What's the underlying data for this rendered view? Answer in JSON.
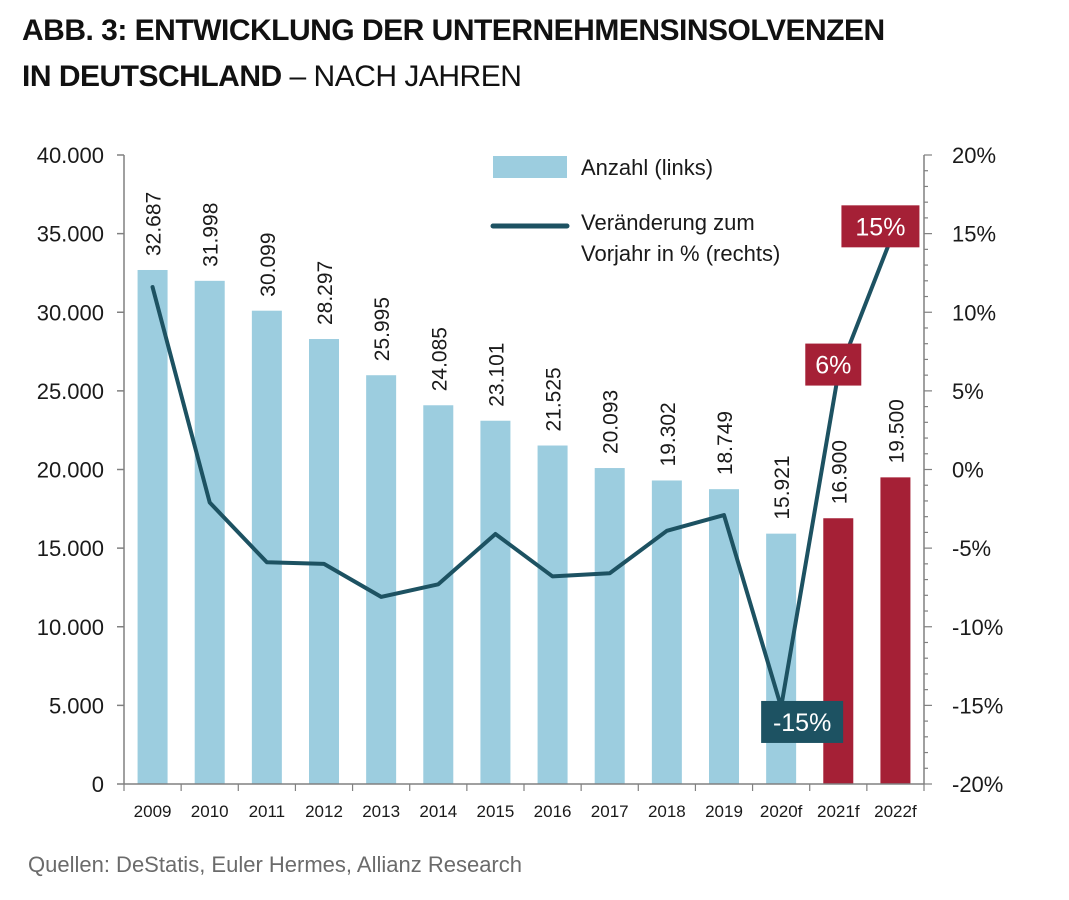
{
  "title": {
    "line1": "ABB. 3: ENTWICKLUNG DER UNTERNEHMENSINSOLVENZEN",
    "line2_bold": "IN DEUTSCHLAND",
    "line2_rest": " – NACH JAHREN"
  },
  "source": "Quellen: DeStatis, Euler Hermes, Allianz Research",
  "colors": {
    "bar": "#9ccddf",
    "bar_forecast": "#a52036",
    "line": "#1d5262",
    "callout_forecast": "#a52036",
    "callout_line": "#1d5262",
    "axis": "#808080"
  },
  "chart_data": {
    "type": "bar",
    "categories": [
      "2009",
      "2010",
      "2011",
      "2012",
      "2013",
      "2014",
      "2015",
      "2016",
      "2017",
      "2018",
      "2019",
      "2020f",
      "2021f",
      "2022f"
    ],
    "series": [
      {
        "name": "Anzahl (links)",
        "type": "bar",
        "axis": "left",
        "values": [
          32687,
          31998,
          30099,
          28297,
          25995,
          24085,
          23101,
          21525,
          20093,
          19302,
          18749,
          15921,
          16900,
          19500
        ],
        "labels": [
          "32.687",
          "31.998",
          "30.099",
          "28.297",
          "25.995",
          "24.085",
          "23.101",
          "21.525",
          "20.093",
          "19.302",
          "18.749",
          "15.921",
          "16.900",
          "19.500"
        ],
        "forecast_from_index": 12
      },
      {
        "name": "Veränderung zum Vorjahr in % (rechts)",
        "type": "line",
        "axis": "right",
        "values": [
          11.6,
          -2.1,
          -5.9,
          -6.0,
          -8.1,
          -7.3,
          -4.1,
          -6.8,
          -6.6,
          -3.9,
          -2.9,
          -15.1,
          6.1,
          15.4
        ]
      }
    ],
    "legend": {
      "bar_label": "Anzahl (links)",
      "line_label_1": "Veränderung zum",
      "line_label_2": "Vorjahr in % (rechts)",
      "position": "top-right"
    },
    "left_axis": {
      "ylim": [
        0,
        40000
      ],
      "ticks": [
        0,
        5000,
        10000,
        15000,
        20000,
        25000,
        30000,
        35000,
        40000
      ],
      "tick_labels": [
        "0",
        "5.000",
        "10.000",
        "15.000",
        "20.000",
        "25.000",
        "30.000",
        "35.000",
        "40.000"
      ]
    },
    "right_axis": {
      "ylim": [
        -20,
        20
      ],
      "ticks": [
        -20,
        -15,
        -10,
        -5,
        0,
        5,
        10,
        15,
        20
      ],
      "tick_labels": [
        "-20%",
        "-15%",
        "-10%",
        "-5%",
        "0%",
        "5%",
        "10%",
        "15%",
        "20%"
      ]
    },
    "callouts": [
      {
        "index": 11,
        "text": "-15%",
        "style": "line"
      },
      {
        "index": 12,
        "text": "6%",
        "style": "forecast"
      },
      {
        "index": 13,
        "text": "15%",
        "style": "forecast"
      }
    ],
    "grid": false
  }
}
